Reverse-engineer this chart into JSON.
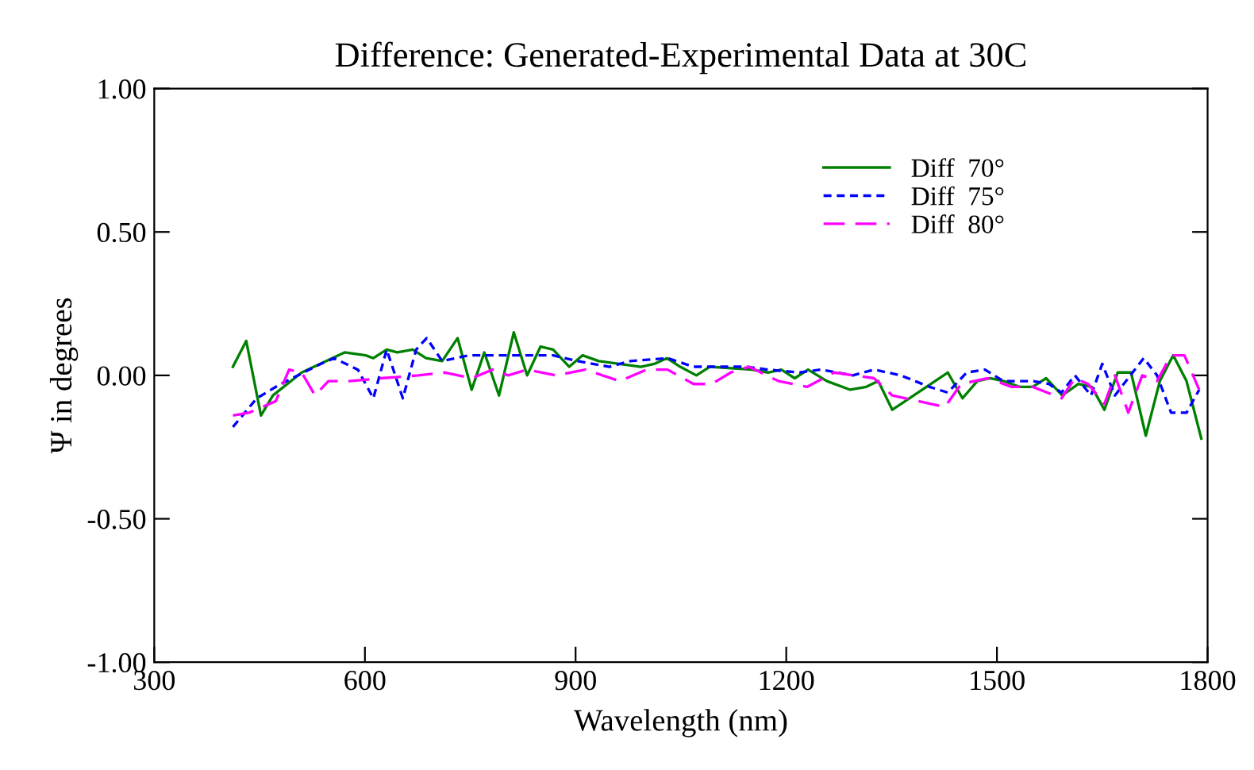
{
  "chart_data": {
    "type": "line",
    "title": "Difference: Generated-Experimental Data at 30C",
    "xlabel": "Wavelength (nm)",
    "ylabel": "Ψ in degrees",
    "xlim": [
      300,
      1800
    ],
    "xticks": [
      300,
      600,
      900,
      1200,
      1500,
      1800
    ],
    "ylim": [
      -1.0,
      1.0
    ],
    "yticks": [
      {
        "value": -1.0,
        "label": "-1.00"
      },
      {
        "value": -0.5,
        "label": "-0.50"
      },
      {
        "value": 0.0,
        "label": "0.00"
      },
      {
        "value": 0.5,
        "label": "0.50"
      },
      {
        "value": 1.0,
        "label": "1.00"
      }
    ],
    "grid": false,
    "legend": "top right",
    "series": [
      {
        "name": "Diff  70°",
        "color": "#008000",
        "line_style": "solid",
        "x": [
          412,
          431,
          452,
          469,
          510,
          571,
          601,
          612,
          631,
          646,
          668,
          687,
          710,
          732,
          752,
          770,
          791,
          812,
          831,
          850,
          868,
          891,
          910,
          933,
          993,
          1012,
          1030,
          1049,
          1072,
          1091,
          1151,
          1174,
          1193,
          1212,
          1231,
          1258,
          1291,
          1314,
          1331,
          1351,
          1430,
          1451,
          1472,
          1490,
          1510,
          1532,
          1551,
          1570,
          1593,
          1616,
          1635,
          1653,
          1672,
          1691,
          1712,
          1732,
          1751,
          1770,
          1791
        ],
        "values": [
          0.03,
          0.12,
          -0.14,
          -0.07,
          0.01,
          0.08,
          0.07,
          0.06,
          0.09,
          0.08,
          0.09,
          0.06,
          0.05,
          0.13,
          -0.05,
          0.08,
          -0.07,
          0.15,
          0.0,
          0.1,
          0.09,
          0.03,
          0.07,
          0.05,
          0.03,
          0.04,
          0.06,
          0.03,
          0.0,
          0.03,
          0.02,
          0.01,
          0.02,
          -0.01,
          0.02,
          -0.02,
          -0.05,
          -0.04,
          -0.02,
          -0.12,
          0.01,
          -0.08,
          -0.02,
          -0.01,
          -0.02,
          -0.04,
          -0.04,
          -0.01,
          -0.07,
          -0.03,
          -0.04,
          -0.12,
          0.01,
          0.01,
          -0.21,
          -0.02,
          0.07,
          -0.02,
          -0.22
        ]
      },
      {
        "name": "Diff  75°",
        "color": "#0000ff",
        "line_style": "dotted",
        "x": [
          412,
          446,
          480,
          537,
          556,
          590,
          612,
          631,
          654,
          673,
          688,
          710,
          748,
          793,
          831,
          868,
          902,
          948,
          978,
          1031,
          1068,
          1098,
          1144,
          1174,
          1219,
          1249,
          1295,
          1325,
          1363,
          1404,
          1430,
          1457,
          1483,
          1509,
          1551,
          1574,
          1592,
          1611,
          1634,
          1650,
          1668,
          1690,
          1709,
          1728,
          1748,
          1770,
          1788
        ],
        "values": [
          -0.18,
          -0.08,
          -0.03,
          0.04,
          0.06,
          0.02,
          -0.08,
          0.09,
          -0.08,
          0.09,
          0.13,
          0.05,
          0.07,
          0.07,
          0.07,
          0.07,
          0.05,
          0.03,
          0.05,
          0.06,
          0.03,
          0.03,
          0.03,
          0.02,
          0.01,
          0.02,
          0.0,
          0.02,
          0.0,
          -0.04,
          -0.06,
          0.01,
          0.02,
          -0.02,
          -0.02,
          -0.03,
          -0.06,
          0.0,
          -0.07,
          0.04,
          -0.07,
          0.0,
          0.06,
          0.0,
          -0.13,
          -0.13,
          -0.05
        ]
      },
      {
        "name": "Diff  80°",
        "color": "#ff00ff",
        "line_style": "dashed",
        "x": [
          412,
          435,
          473,
          492,
          510,
          529,
          548,
          578,
          623,
          676,
          714,
          752,
          782,
          804,
          831,
          872,
          914,
          963,
          1001,
          1031,
          1068,
          1094,
          1121,
          1147,
          1189,
          1230,
          1268,
          1325,
          1351,
          1426,
          1449,
          1487,
          1521,
          1551,
          1592,
          1611,
          1630,
          1653,
          1668,
          1687,
          1707,
          1728,
          1748,
          1767,
          1788
        ],
        "values": [
          -0.14,
          -0.13,
          -0.09,
          0.02,
          0.01,
          -0.07,
          -0.02,
          -0.02,
          -0.01,
          0.0,
          0.01,
          -0.01,
          0.02,
          0.0,
          0.02,
          0.0,
          0.02,
          -0.02,
          0.02,
          0.02,
          -0.03,
          -0.03,
          0.01,
          0.03,
          -0.02,
          -0.04,
          0.01,
          -0.01,
          -0.07,
          -0.11,
          -0.03,
          -0.01,
          -0.04,
          -0.04,
          -0.08,
          -0.01,
          -0.03,
          -0.1,
          0.0,
          -0.13,
          0.0,
          -0.02,
          0.07,
          0.07,
          -0.05
        ]
      }
    ]
  }
}
